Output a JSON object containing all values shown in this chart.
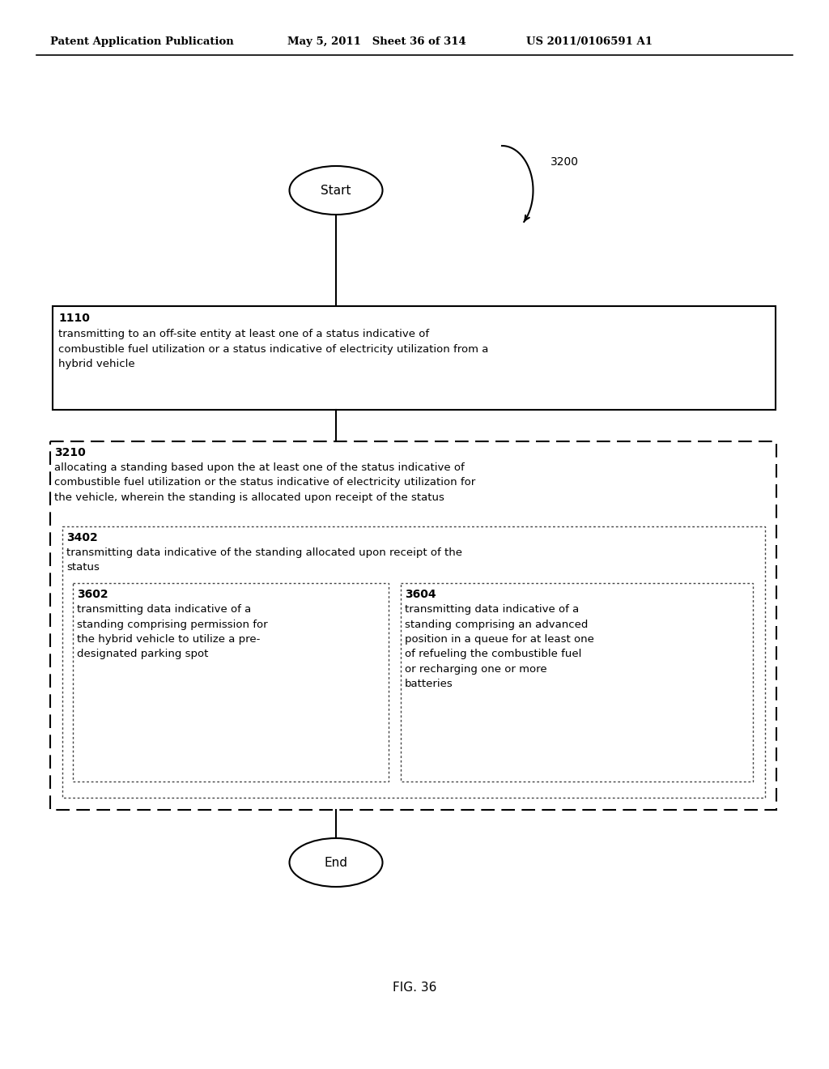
{
  "header_left": "Patent Application Publication",
  "header_mid": "May 5, 2011   Sheet 36 of 314",
  "header_right": "US 2011/0106591 A1",
  "fig_label": "FIG. 36",
  "start_label": "Start",
  "end_label": "End",
  "arrow_label": "3200",
  "box1_id": "1110",
  "box1_text": "transmitting to an off-site entity at least one of a status indicative of\ncombustible fuel utilization or a status indicative of electricity utilization from a\nhybrid vehicle",
  "box2_id": "3210",
  "box2_text": "allocating a standing based upon the at least one of the status indicative of\ncombustible fuel utilization or the status indicative of electricity utilization for\nthe vehicle, wherein the standing is allocated upon receipt of the status",
  "box3_id": "3402",
  "box3_text": "transmitting data indicative of the standing allocated upon receipt of the\nstatus",
  "box4_id": "3602",
  "box4_text": "transmitting data indicative of a\nstanding comprising permission for\nthe hybrid vehicle to utilize a pre-\ndesignated parking spot",
  "box5_id": "3604",
  "box5_text": "transmitting data indicative of a\nstanding comprising an advanced\nposition in a queue for at least one\nof refueling the combustible fuel\nor recharging one or more\nbatteries",
  "bg_color": "#ffffff",
  "text_color": "#000000"
}
